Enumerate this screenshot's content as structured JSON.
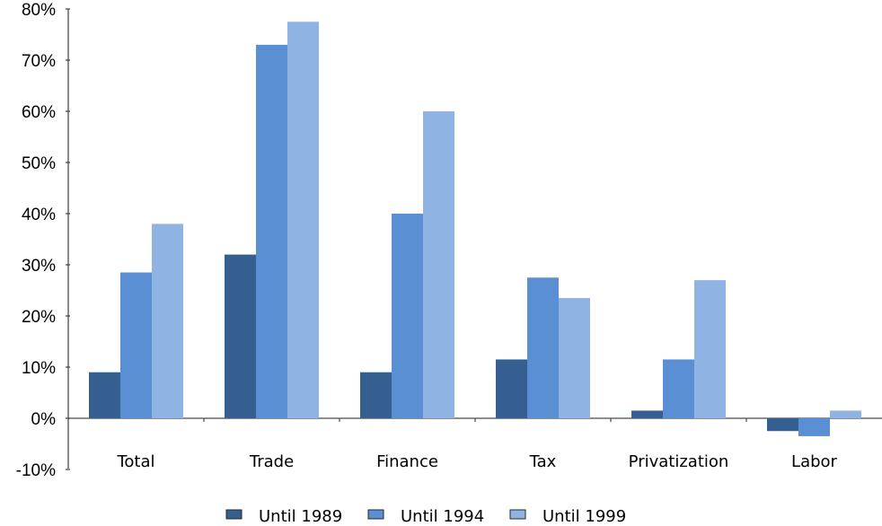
{
  "chart_data": {
    "type": "bar",
    "categories": [
      "Total",
      "Trade",
      "Finance",
      "Tax",
      "Privatization",
      "Labor"
    ],
    "series": [
      {
        "name": "Until 1989",
        "color": "#355f91",
        "values": [
          9,
          32,
          9,
          11.5,
          1.5,
          -2.5
        ]
      },
      {
        "name": "Until 1994",
        "color": "#5a8fd4",
        "values": [
          28.5,
          73,
          40,
          27.5,
          11.5,
          -3.5
        ]
      },
      {
        "name": "Until 1999",
        "color": "#8fb4e3",
        "values": [
          38,
          77.5,
          60,
          23.5,
          27,
          1.5
        ]
      }
    ],
    "ylim": [
      -10,
      80
    ],
    "yticks": [
      "-10%",
      "0%",
      "10%",
      "20%",
      "30%",
      "40%",
      "50%",
      "60%",
      "70%",
      "80%"
    ],
    "ytick_values": [
      -10,
      0,
      10,
      20,
      30,
      40,
      50,
      60,
      70,
      80
    ],
    "grid": false,
    "legend_position": "bottom"
  }
}
